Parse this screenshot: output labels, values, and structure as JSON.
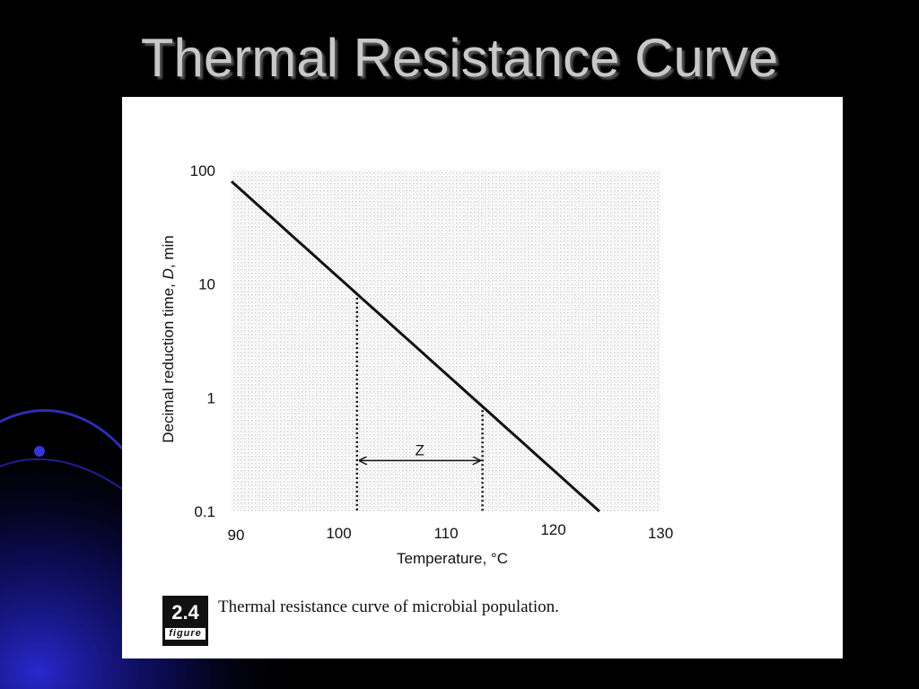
{
  "slide": {
    "title": "Thermal Resistance Curve"
  },
  "figure": {
    "badge_number": "2.4",
    "badge_word": "figure",
    "caption": "Thermal resistance curve of microbial population."
  },
  "colors": {
    "background": "#000000",
    "title": "#c8c8c8",
    "panel": "#ffffff",
    "ink": "#111111",
    "swoosh": "#1a1aa8"
  },
  "chart_data": {
    "type": "line",
    "title": "",
    "xlabel": "Temperature, °C",
    "ylabel_parts": [
      "Decimal reduction time, ",
      "D",
      ", min"
    ],
    "xlim": [
      90,
      130
    ],
    "ylim": [
      0.1,
      100
    ],
    "y_scale": "log",
    "x_ticks": [
      "90",
      "100",
      "110",
      "120",
      "130"
    ],
    "y_ticks": [
      "100",
      "10",
      "1",
      "0.1"
    ],
    "grid": false,
    "series": [
      {
        "x": [
          90,
          124.3
        ],
        "y": [
          80,
          0.1
        ]
      }
    ],
    "annotation": {
      "label": "Z",
      "x_start": 101.7,
      "x_end": 113.4,
      "y_start": 8.3,
      "y_end": 0.85,
      "arrow_y": 0.28
    }
  }
}
